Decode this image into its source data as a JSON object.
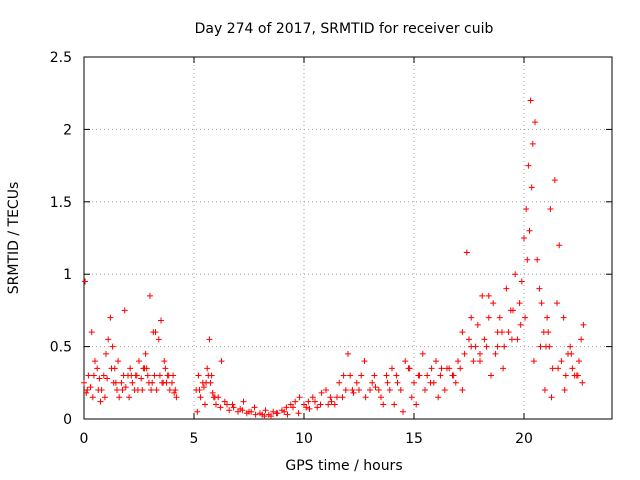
{
  "chart_data": {
    "type": "scatter",
    "title": "Day 274 of 2017, SRMTID for receiver cuib",
    "xlabel": "GPS time / hours",
    "ylabel": "SRMTID / TECUs",
    "xlim": [
      0,
      24
    ],
    "ylim": [
      0,
      2.5
    ],
    "grid": true,
    "marker": "+",
    "marker_color": "#ff0000",
    "x_ticks": [
      0,
      5,
      10,
      15,
      20
    ],
    "x_tick_labels": [
      "0",
      "5",
      "10",
      "15",
      "20"
    ],
    "y_ticks": [
      0,
      0.5,
      1,
      1.5,
      2,
      2.5
    ],
    "y_tick_labels": [
      "0",
      "0.5",
      "1",
      "1.5",
      "2",
      "2.5"
    ],
    "series": [
      {
        "name": "SRMTID",
        "x": [
          0.0,
          0.1,
          0.2,
          0.3,
          0.4,
          0.5,
          0.6,
          0.7,
          0.8,
          0.9,
          1.0,
          1.1,
          1.2,
          1.3,
          1.4,
          1.5,
          1.6,
          1.7,
          1.8,
          1.9,
          2.0,
          2.1,
          2.2,
          2.3,
          2.4,
          2.5,
          2.6,
          2.7,
          2.8,
          2.9,
          3.0,
          3.1,
          3.2,
          3.3,
          3.4,
          3.5,
          3.6,
          3.7,
          3.8,
          3.9,
          4.0,
          4.1,
          4.2,
          5.1,
          5.2,
          5.3,
          5.4,
          5.5,
          5.6,
          5.7,
          5.8,
          5.9,
          6.0,
          6.2,
          6.4,
          6.6,
          6.8,
          7.0,
          7.2,
          7.4,
          7.6,
          7.8,
          8.0,
          8.2,
          8.4,
          8.6,
          8.8,
          9.0,
          9.2,
          9.4,
          9.6,
          9.8,
          10.0,
          10.2,
          10.4,
          10.6,
          10.8,
          11.0,
          11.2,
          11.4,
          11.6,
          11.8,
          12.0,
          12.2,
          12.4,
          12.6,
          12.8,
          13.0,
          13.2,
          13.4,
          13.6,
          13.8,
          14.0,
          14.2,
          14.4,
          14.6,
          14.8,
          15.0,
          15.2,
          15.4,
          15.6,
          15.8,
          16.0,
          16.2,
          16.4,
          16.6,
          16.8,
          17.0,
          17.2,
          17.4,
          17.6,
          17.8,
          18.0,
          18.2,
          18.4,
          18.6,
          18.8,
          19.0,
          19.2,
          19.4,
          19.6,
          19.8,
          20.0,
          20.1,
          20.2,
          20.3,
          20.4,
          20.6,
          20.8,
          21.0,
          21.1,
          21.2,
          21.4,
          21.6,
          21.8,
          22.0,
          22.2,
          22.4,
          22.6,
          0.05,
          0.35,
          0.65,
          0.95,
          1.25,
          1.35,
          1.55,
          1.85,
          2.15,
          2.45,
          2.75,
          2.95,
          3.05,
          3.25,
          3.45,
          3.65,
          3.75,
          4.05,
          5.25,
          5.55,
          5.75,
          5.95,
          6.25,
          6.75,
          7.25,
          7.75,
          8.25,
          8.75,
          9.25,
          9.75,
          10.25,
          10.75,
          11.25,
          11.75,
          11.9,
          12.25,
          12.75,
          13.25,
          13.75,
          14.25,
          14.75,
          15.25,
          15.75,
          16.25,
          16.75,
          17.1,
          17.3,
          17.5,
          17.7,
          17.9,
          18.1,
          18.3,
          18.5,
          18.7,
          18.9,
          19.1,
          19.3,
          19.5,
          19.7,
          19.9,
          20.05,
          20.15,
          20.25,
          20.35,
          20.5,
          20.7,
          20.9,
          21.05,
          21.15,
          21.3,
          21.5,
          21.7,
          21.9,
          22.1,
          22.3,
          22.5,
          22.7,
          0.15,
          0.45,
          0.75,
          1.05,
          1.45,
          1.75,
          2.05,
          2.35,
          2.65,
          2.85,
          3.15,
          3.55,
          3.85,
          4.15,
          5.15,
          5.45,
          5.65,
          5.85,
          6.1,
          6.5,
          7.1,
          7.5,
          8.1,
          8.5,
          9.1,
          9.5,
          10.1,
          10.5,
          11.1,
          11.5,
          12.1,
          12.5,
          13.1,
          13.5,
          13.9,
          14.1,
          14.5,
          14.9,
          15.1,
          15.5,
          15.9,
          16.1,
          16.5,
          16.9,
          17.2,
          17.6,
          18.0,
          18.4,
          18.8,
          19.05,
          19.45,
          19.85,
          20.45,
          20.75,
          20.95,
          21.25,
          21.55,
          21.85,
          22.15,
          22.45,
          22.65
        ],
        "y": [
          0.25,
          0.18,
          0.3,
          0.22,
          0.15,
          0.4,
          0.35,
          0.28,
          0.2,
          0.3,
          0.45,
          0.55,
          0.7,
          0.5,
          0.35,
          0.2,
          0.15,
          0.25,
          0.3,
          0.22,
          0.3,
          0.35,
          0.25,
          0.2,
          0.3,
          0.4,
          0.28,
          0.35,
          0.45,
          0.3,
          0.85,
          0.25,
          0.3,
          0.2,
          0.55,
          0.68,
          0.25,
          0.35,
          0.3,
          0.2,
          0.25,
          0.18,
          0.15,
          0.2,
          0.3,
          0.15,
          0.25,
          0.1,
          0.35,
          0.55,
          0.3,
          0.15,
          0.1,
          0.08,
          0.12,
          0.06,
          0.08,
          0.05,
          0.06,
          0.04,
          0.05,
          0.03,
          0.04,
          0.02,
          0.03,
          0.05,
          0.04,
          0.06,
          0.08,
          0.1,
          0.12,
          0.15,
          0.1,
          0.12,
          0.15,
          0.08,
          0.18,
          0.2,
          0.15,
          0.1,
          0.25,
          0.3,
          0.45,
          0.2,
          0.25,
          0.3,
          0.15,
          0.2,
          0.3,
          0.2,
          0.1,
          0.25,
          0.35,
          0.3,
          0.2,
          0.4,
          0.35,
          0.25,
          0.3,
          0.45,
          0.3,
          0.35,
          0.4,
          0.3,
          0.2,
          0.35,
          0.3,
          0.4,
          0.6,
          1.15,
          0.7,
          0.5,
          0.45,
          0.55,
          0.7,
          0.8,
          0.5,
          0.6,
          0.9,
          0.75,
          1.0,
          0.8,
          1.25,
          1.45,
          1.75,
          2.2,
          1.9,
          1.1,
          0.8,
          0.5,
          0.6,
          1.45,
          1.65,
          1.2,
          0.7,
          0.45,
          0.35,
          0.3,
          0.55,
          0.95,
          0.6,
          0.2,
          0.15,
          0.35,
          0.25,
          0.4,
          0.75,
          0.3,
          0.2,
          0.35,
          0.25,
          0.2,
          0.6,
          0.3,
          0.4,
          0.25,
          0.3,
          0.2,
          0.25,
          0.25,
          0.15,
          0.4,
          0.1,
          0.12,
          0.08,
          0.06,
          0.04,
          0.03,
          0.04,
          0.07,
          0.1,
          0.12,
          0.15,
          0.2,
          0.18,
          0.4,
          0.22,
          0.3,
          0.25,
          0.35,
          0.3,
          0.25,
          0.35,
          0.3,
          0.35,
          0.45,
          0.55,
          0.4,
          0.65,
          0.85,
          0.5,
          0.3,
          0.45,
          0.7,
          0.5,
          0.6,
          0.75,
          0.55,
          0.95,
          0.7,
          1.1,
          1.3,
          1.6,
          2.05,
          0.9,
          0.6,
          0.7,
          0.5,
          0.35,
          0.8,
          0.4,
          0.3,
          0.5,
          0.3,
          0.4,
          0.65,
          0.2,
          0.3,
          0.12,
          0.28,
          0.25,
          0.2,
          0.15,
          0.3,
          0.2,
          0.35,
          0.6,
          0.25,
          0.3,
          0.2,
          0.05,
          0.22,
          0.3,
          0.18,
          0.15,
          0.1,
          0.07,
          0.05,
          0.03,
          0.02,
          0.05,
          0.08,
          0.08,
          0.12,
          0.1,
          0.15,
          0.3,
          0.2,
          0.25,
          0.15,
          0.2,
          0.1,
          0.05,
          0.15,
          0.1,
          0.2,
          0.25,
          0.15,
          0.35,
          0.25,
          0.2,
          0.5,
          0.4,
          0.85,
          0.6,
          0.35,
          0.55,
          0.65,
          0.4,
          0.5,
          0.2,
          0.15,
          0.35,
          0.2,
          0.45,
          0.3,
          0.25
        ]
      }
    ]
  }
}
